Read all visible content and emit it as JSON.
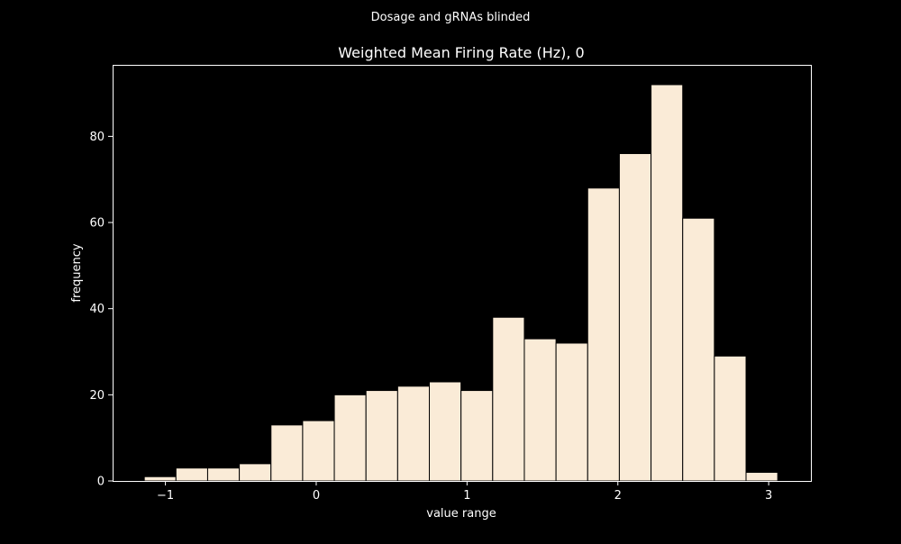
{
  "figure": {
    "suptitle": "Dosage and gRNAs blinded"
  },
  "colors": {
    "background": "#000000",
    "bar_fill": "#faebd7",
    "bar_edge": "#000000",
    "axes": "#ffffff"
  },
  "chart_data": {
    "type": "bar",
    "title": "Weighted Mean Firing Rate (Hz), 0",
    "xlabel": "value range",
    "ylabel": "frequency",
    "xlim": [
      -1.35,
      3.28
    ],
    "ylim": [
      0,
      96.6
    ],
    "xticks": [
      -1,
      0,
      1,
      2,
      3
    ],
    "xtick_labels": [
      "−1",
      "0",
      "1",
      "2",
      "3"
    ],
    "yticks": [
      0,
      20,
      40,
      60,
      80
    ],
    "ytick_labels": [
      "0",
      "20",
      "40",
      "60",
      "80"
    ],
    "bin_edges": [
      -1.14,
      -0.93,
      -0.72,
      -0.51,
      -0.3,
      -0.09,
      0.12,
      0.33,
      0.54,
      0.75,
      0.96,
      1.17,
      1.38,
      1.59,
      1.8,
      2.01,
      2.22,
      2.43,
      2.64,
      2.85,
      3.06
    ],
    "values": [
      1,
      3,
      3,
      4,
      13,
      14,
      20,
      21,
      22,
      23,
      21,
      38,
      33,
      32,
      68,
      76,
      92,
      61,
      29,
      2
    ],
    "grid": false,
    "legend": "none"
  }
}
